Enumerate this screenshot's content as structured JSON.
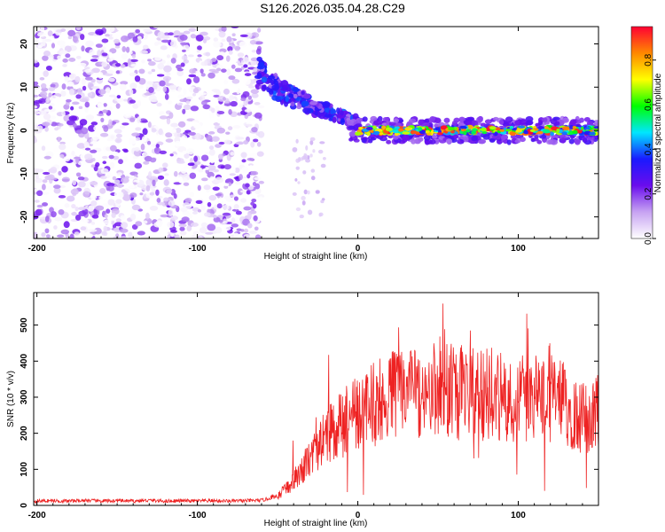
{
  "title": "S126.2026.035.04.28.C29",
  "chart_data": [
    {
      "type": "heatmap",
      "id": "spectrogram",
      "xlabel": "Height of straight line (km)",
      "ylabel": "Frequency (Hz)",
      "xlim": [
        -202,
        150
      ],
      "ylim": [
        -25,
        24
      ],
      "xticks": [
        -200,
        -100,
        0,
        100
      ],
      "yticks": [
        -20,
        -10,
        0,
        10,
        20
      ],
      "grid": false,
      "regions": [
        {
          "name": "noise",
          "x_range": [
            -202,
            -60
          ],
          "freq_range": [
            -25,
            24
          ],
          "amplitude_range": [
            0.0,
            0.25
          ]
        },
        {
          "name": "descending-chirp",
          "x_range": [
            -62,
            0
          ],
          "freq_start": 15,
          "freq_end": 2,
          "amplitude_range": [
            0.15,
            0.4
          ]
        },
        {
          "name": "carrier-line",
          "x_range": [
            0,
            150
          ],
          "frequency": 0,
          "amplitude_range": [
            0.3,
            0.95
          ]
        }
      ],
      "colorbar": {
        "label": "Normalized spectral amplitude",
        "ticks": [
          "0.0",
          "0.2",
          "0.4",
          "0.6",
          "0.8"
        ],
        "range": [
          0,
          0.95
        ],
        "colormap": [
          "#ffffff",
          "#c7a3f2",
          "#6a0ded",
          "#1a1aff",
          "#00e6ff",
          "#00ff00",
          "#ffff00",
          "#ff8800",
          "#ff0033"
        ]
      }
    },
    {
      "type": "line",
      "id": "snr",
      "xlabel": "Height of straight line (km)",
      "ylabel": "SNR (10 * v/v)",
      "xlim": [
        -202,
        150
      ],
      "ylim": [
        0,
        590
      ],
      "xticks": [
        -200,
        -100,
        0,
        100
      ],
      "yticks": [
        0,
        100,
        200,
        300,
        400,
        500
      ],
      "grid": false,
      "series": [
        {
          "name": "SNR",
          "color": "#ee2222",
          "x": [
            -202,
            -190,
            -180,
            -170,
            -160,
            -150,
            -140,
            -130,
            -120,
            -110,
            -100,
            -90,
            -80,
            -70,
            -60,
            -50,
            -45,
            -40,
            -35,
            -30,
            -25,
            -20,
            -15,
            -10,
            -5,
            0,
            10,
            20,
            30,
            40,
            50,
            60,
            70,
            80,
            90,
            100,
            110,
            120,
            130,
            135,
            140,
            145,
            150
          ],
          "values": [
            12,
            13,
            12,
            14,
            12,
            13,
            12,
            14,
            12,
            13,
            12,
            13,
            12,
            13,
            14,
            25,
            45,
            70,
            95,
            130,
            160,
            190,
            210,
            225,
            240,
            255,
            280,
            300,
            310,
            320,
            320,
            315,
            310,
            310,
            305,
            300,
            300,
            300,
            280,
            260,
            240,
            250,
            260
          ]
        }
      ]
    }
  ]
}
